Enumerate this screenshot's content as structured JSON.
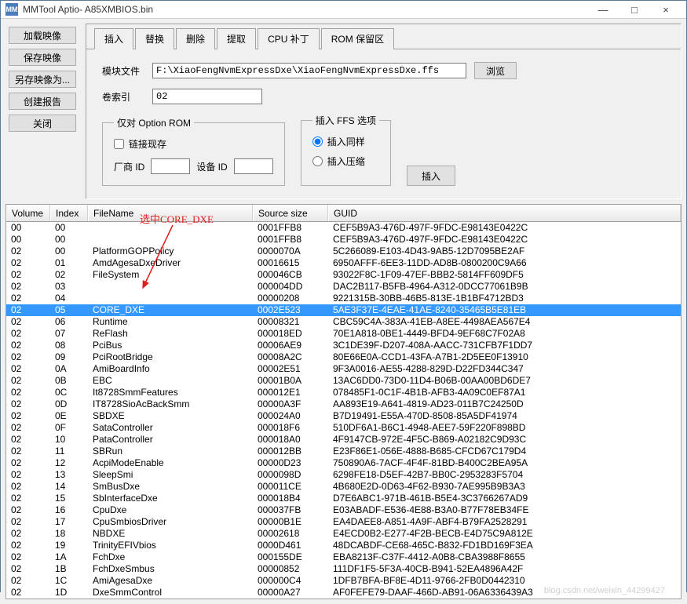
{
  "window": {
    "app_icon_text": "MM",
    "title": "MMTool Aptio- A85XMBIOS.bin",
    "min": "—",
    "max": "□",
    "close": "×"
  },
  "side_buttons": {
    "load": "加载映像",
    "save": "保存映像",
    "save_as": "另存映像为...",
    "report": "创建报告",
    "close": "关闭"
  },
  "tabs": {
    "insert": "插入",
    "replace": "替换",
    "delete": "删除",
    "extract": "提取",
    "cpu_patch": "CPU 补丁",
    "rom_reserve": "ROM 保留区"
  },
  "form": {
    "module_file_label": "模块文件",
    "module_file_value": "F:\\XiaoFengNvmExpressDxe\\XiaoFengNvmExpressDxe.ffs",
    "browse": "浏览",
    "vol_index_label": "卷索引",
    "vol_index_value": "02",
    "option_rom_legend": "仅对 Option ROM",
    "link_existing": "链接现存",
    "vendor_id": "厂商 ID",
    "device_id": "设备 ID",
    "ffs_legend": "插入 FFS 选项",
    "insert_same": "插入同样",
    "insert_compressed": "插入压缩",
    "insert_btn": "插入"
  },
  "annotation": "选中CORE_DXE",
  "table": {
    "headers": {
      "volume": "Volume",
      "index": "Index",
      "filename": "FileName",
      "size": "Source size",
      "guid": "GUID"
    },
    "selected_index": 7,
    "rows": [
      {
        "v": "00",
        "i": "00",
        "f": "",
        "s": "0001FFB8",
        "g": "CEF5B9A3-476D-497F-9FDC-E98143E0422C"
      },
      {
        "v": "00",
        "i": "00",
        "f": "",
        "s": "0001FFB8",
        "g": "CEF5B9A3-476D-497F-9FDC-E98143E0422C"
      },
      {
        "v": "02",
        "i": "00",
        "f": "PlatformGOPPolicy",
        "s": "0000070A",
        "g": "5C266089-E103-4D43-9AB5-12D7095BE2AF"
      },
      {
        "v": "02",
        "i": "01",
        "f": "AmdAgesaDxeDriver",
        "s": "00016615",
        "g": "6950AFFF-6EE3-11DD-AD8B-0800200C9A66"
      },
      {
        "v": "02",
        "i": "02",
        "f": "FileSystem",
        "s": "000046CB",
        "g": "93022F8C-1F09-47EF-BBB2-5814FF609DF5"
      },
      {
        "v": "02",
        "i": "03",
        "f": "",
        "s": "000004DD",
        "g": "DAC2B117-B5FB-4964-A312-0DCC77061B9B"
      },
      {
        "v": "02",
        "i": "04",
        "f": "",
        "s": "00000208",
        "g": "9221315B-30BB-46B5-813E-1B1BF4712BD3"
      },
      {
        "v": "02",
        "i": "05",
        "f": "CORE_DXE",
        "s": "0002E523",
        "g": "5AE3F37E-4EAE-41AE-8240-35465B5E81EB"
      },
      {
        "v": "02",
        "i": "06",
        "f": "Runtime",
        "s": "00008321",
        "g": "CBC59C4A-383A-41EB-A8EE-4498AEA567E4"
      },
      {
        "v": "02",
        "i": "07",
        "f": "ReFlash",
        "s": "000018ED",
        "g": "70E1A818-0BE1-4449-BFD4-9EF68C7F02A8"
      },
      {
        "v": "02",
        "i": "08",
        "f": "PciBus",
        "s": "00006AE9",
        "g": "3C1DE39F-D207-408A-AACC-731CFB7F1DD7"
      },
      {
        "v": "02",
        "i": "09",
        "f": "PciRootBridge",
        "s": "00008A2C",
        "g": "80E66E0A-CCD1-43FA-A7B1-2D5EE0F13910"
      },
      {
        "v": "02",
        "i": "0A",
        "f": "AmiBoardInfo",
        "s": "00002E51",
        "g": "9F3A0016-AE55-4288-829D-D22FD344C347"
      },
      {
        "v": "02",
        "i": "0B",
        "f": "EBC",
        "s": "00001B0A",
        "g": "13AC6DD0-73D0-11D4-B06B-00AA00BD6DE7"
      },
      {
        "v": "02",
        "i": "0C",
        "f": "It8728SmmFeatures",
        "s": "000012E1",
        "g": "078485F1-0C1F-4B1B-AFB3-4A09C0EF87A1"
      },
      {
        "v": "02",
        "i": "0D",
        "f": "IT8728SioAcBackSmm",
        "s": "00000A3F",
        "g": "AA893E19-A641-4819-AD23-011B7C24250D"
      },
      {
        "v": "02",
        "i": "0E",
        "f": "SBDXE",
        "s": "000024A0",
        "g": "B7D19491-E55A-470D-8508-85A5DF41974"
      },
      {
        "v": "02",
        "i": "0F",
        "f": "SataController",
        "s": "000018F6",
        "g": "510DF6A1-B6C1-4948-AEE7-59F220F898BD"
      },
      {
        "v": "02",
        "i": "10",
        "f": "PataController",
        "s": "000018A0",
        "g": "4F9147CB-972E-4F5C-B869-A02182C9D93C"
      },
      {
        "v": "02",
        "i": "11",
        "f": "SBRun",
        "s": "000012BB",
        "g": "E23F86E1-056E-4888-B685-CFCD67C179D4"
      },
      {
        "v": "02",
        "i": "12",
        "f": "AcpiModeEnable",
        "s": "00000D23",
        "g": "750890A6-7ACF-4F4F-81BD-B400C2BEA95A"
      },
      {
        "v": "02",
        "i": "13",
        "f": "SleepSmi",
        "s": "0000098D",
        "g": "6298FE18-D5EF-42B7-BB0C-2953283F5704"
      },
      {
        "v": "02",
        "i": "14",
        "f": "SmBusDxe",
        "s": "000011CE",
        "g": "4B680E2D-0D63-4F62-B930-7AE995B9B3A3"
      },
      {
        "v": "02",
        "i": "15",
        "f": "SbInterfaceDxe",
        "s": "000018B4",
        "g": "D7E6ABC1-971B-461B-B5E4-3C3766267AD9"
      },
      {
        "v": "02",
        "i": "16",
        "f": "CpuDxe",
        "s": "000037FB",
        "g": "E03ABADF-E536-4E88-B3A0-B77F78EB34FE"
      },
      {
        "v": "02",
        "i": "17",
        "f": "CpuSmbiosDriver",
        "s": "00000B1E",
        "g": "EA4DAEE8-A851-4A9F-ABF4-B79FA2528291"
      },
      {
        "v": "02",
        "i": "18",
        "f": "NBDXE",
        "s": "00002618",
        "g": "E4ECD0B2-E277-4F2B-BECB-E4D75C9A812E"
      },
      {
        "v": "02",
        "i": "19",
        "f": "TrinityEFIVbios",
        "s": "0000D461",
        "g": "48DCABDF-CE68-465C-B832-FD1BD169F3EA"
      },
      {
        "v": "02",
        "i": "1A",
        "f": "FchDxe",
        "s": "000155DE",
        "g": "EBA8213F-C37F-4412-A0B8-CBA3988F8655"
      },
      {
        "v": "02",
        "i": "1B",
        "f": "FchDxeSmbus",
        "s": "00000852",
        "g": "111DF1F5-5F3A-40CB-B941-52EA4896A42F"
      },
      {
        "v": "02",
        "i": "1C",
        "f": "AmiAgesaDxe",
        "s": "000000C4",
        "g": "1DFB7BFA-BF8E-4D11-9766-2FB0D0442310"
      },
      {
        "v": "02",
        "i": "1D",
        "f": "DxeSmmControl",
        "s": "00000A27",
        "g": "AF0FEFE79-DAAF-466D-AB91-06A6336439A3"
      }
    ]
  },
  "watermark": "blog.csdn.net/weixin_44299427"
}
